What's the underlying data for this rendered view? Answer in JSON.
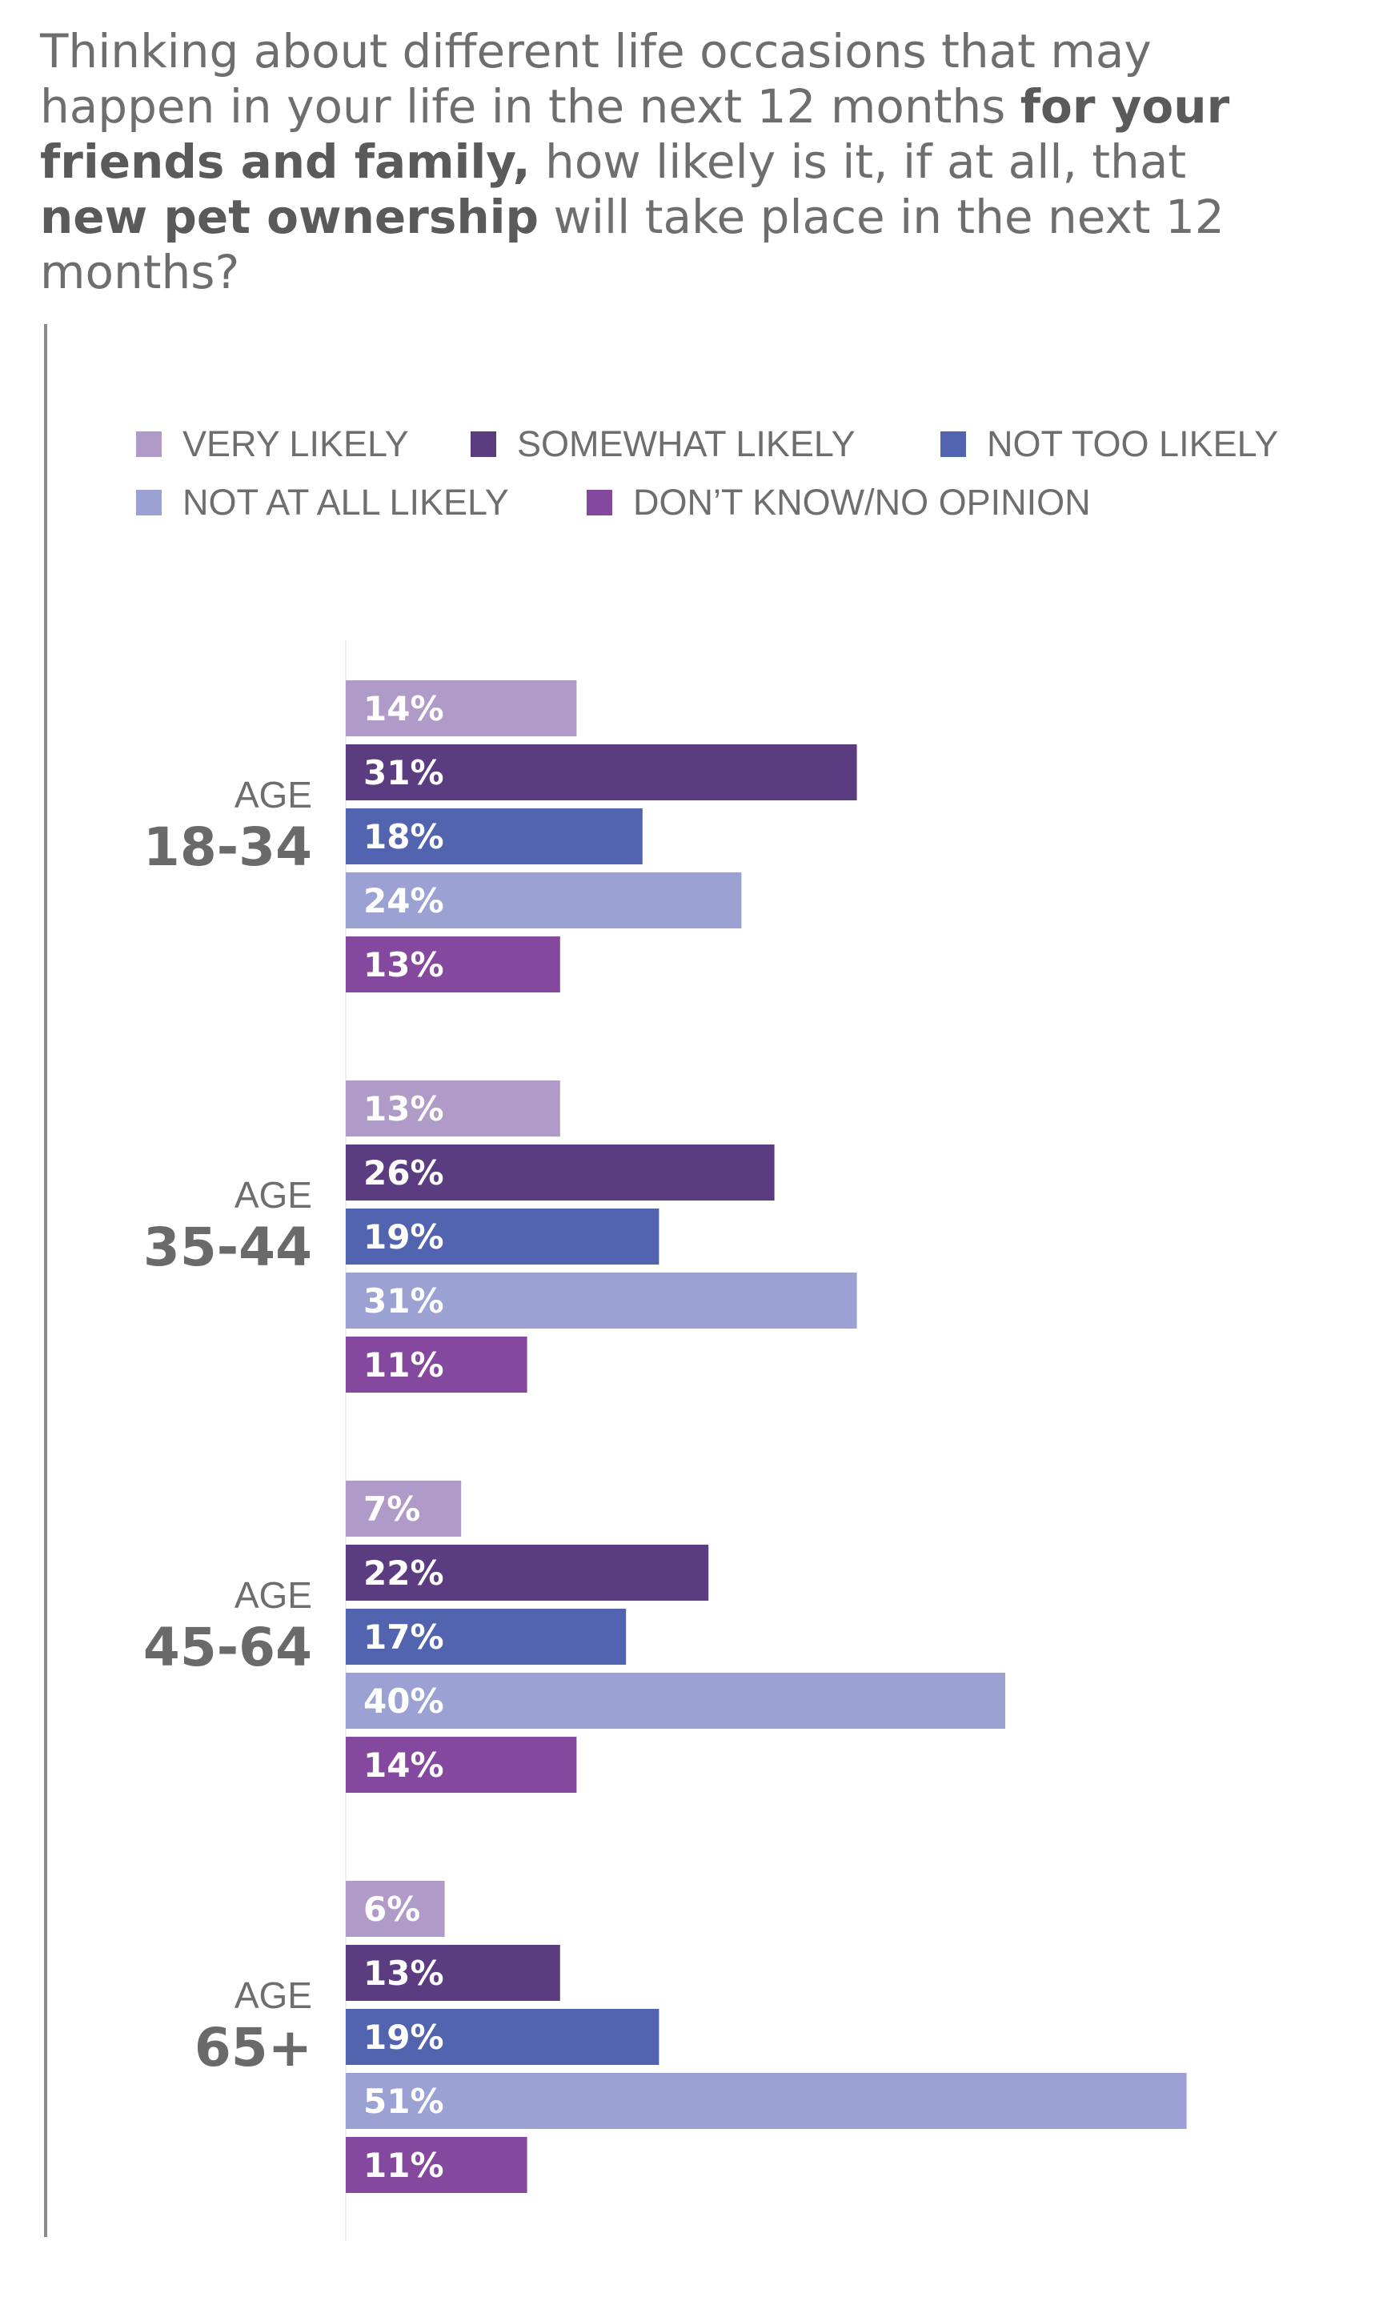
{
  "title": {
    "part1": "Thinking about different life occasions that may happen in your life in the next 12 months ",
    "bold1": "for your friends and family,",
    "part2": " how likely is it, if at all, that ",
    "bold2": "new pet ownership",
    "part3": " will take place in the next 12 months?"
  },
  "colors": {
    "very_likely": "#b09ac8",
    "somewhat_likely": "#5b3c80",
    "not_too_likely": "#5263b0",
    "not_at_all_likely": "#9ba2d3",
    "dont_know": "#84489e"
  },
  "chart_data": {
    "type": "bar",
    "orientation": "horizontal",
    "categories": [
      "18-34",
      "35-44",
      "45-64",
      "65+"
    ],
    "category_prefix": "AGE",
    "value_suffix": "%",
    "series": [
      {
        "name": "VERY LIKELY",
        "color": "#b09ac8",
        "values": [
          14,
          13,
          7,
          6
        ]
      },
      {
        "name": "SOMEWHAT LIKELY",
        "color": "#5b3c80",
        "values": [
          31,
          26,
          22,
          13
        ]
      },
      {
        "name": "NOT TOO LIKELY",
        "color": "#5263b0",
        "values": [
          18,
          19,
          17,
          19
        ]
      },
      {
        "name": "NOT AT ALL LIKELY",
        "color": "#9ba2d3",
        "values": [
          24,
          31,
          40,
          51
        ]
      },
      {
        "name": "DON’T KNOW/NO OPINION",
        "color": "#84489e",
        "values": [
          13,
          11,
          14,
          11
        ]
      }
    ],
    "legend": "top",
    "grid": false
  }
}
